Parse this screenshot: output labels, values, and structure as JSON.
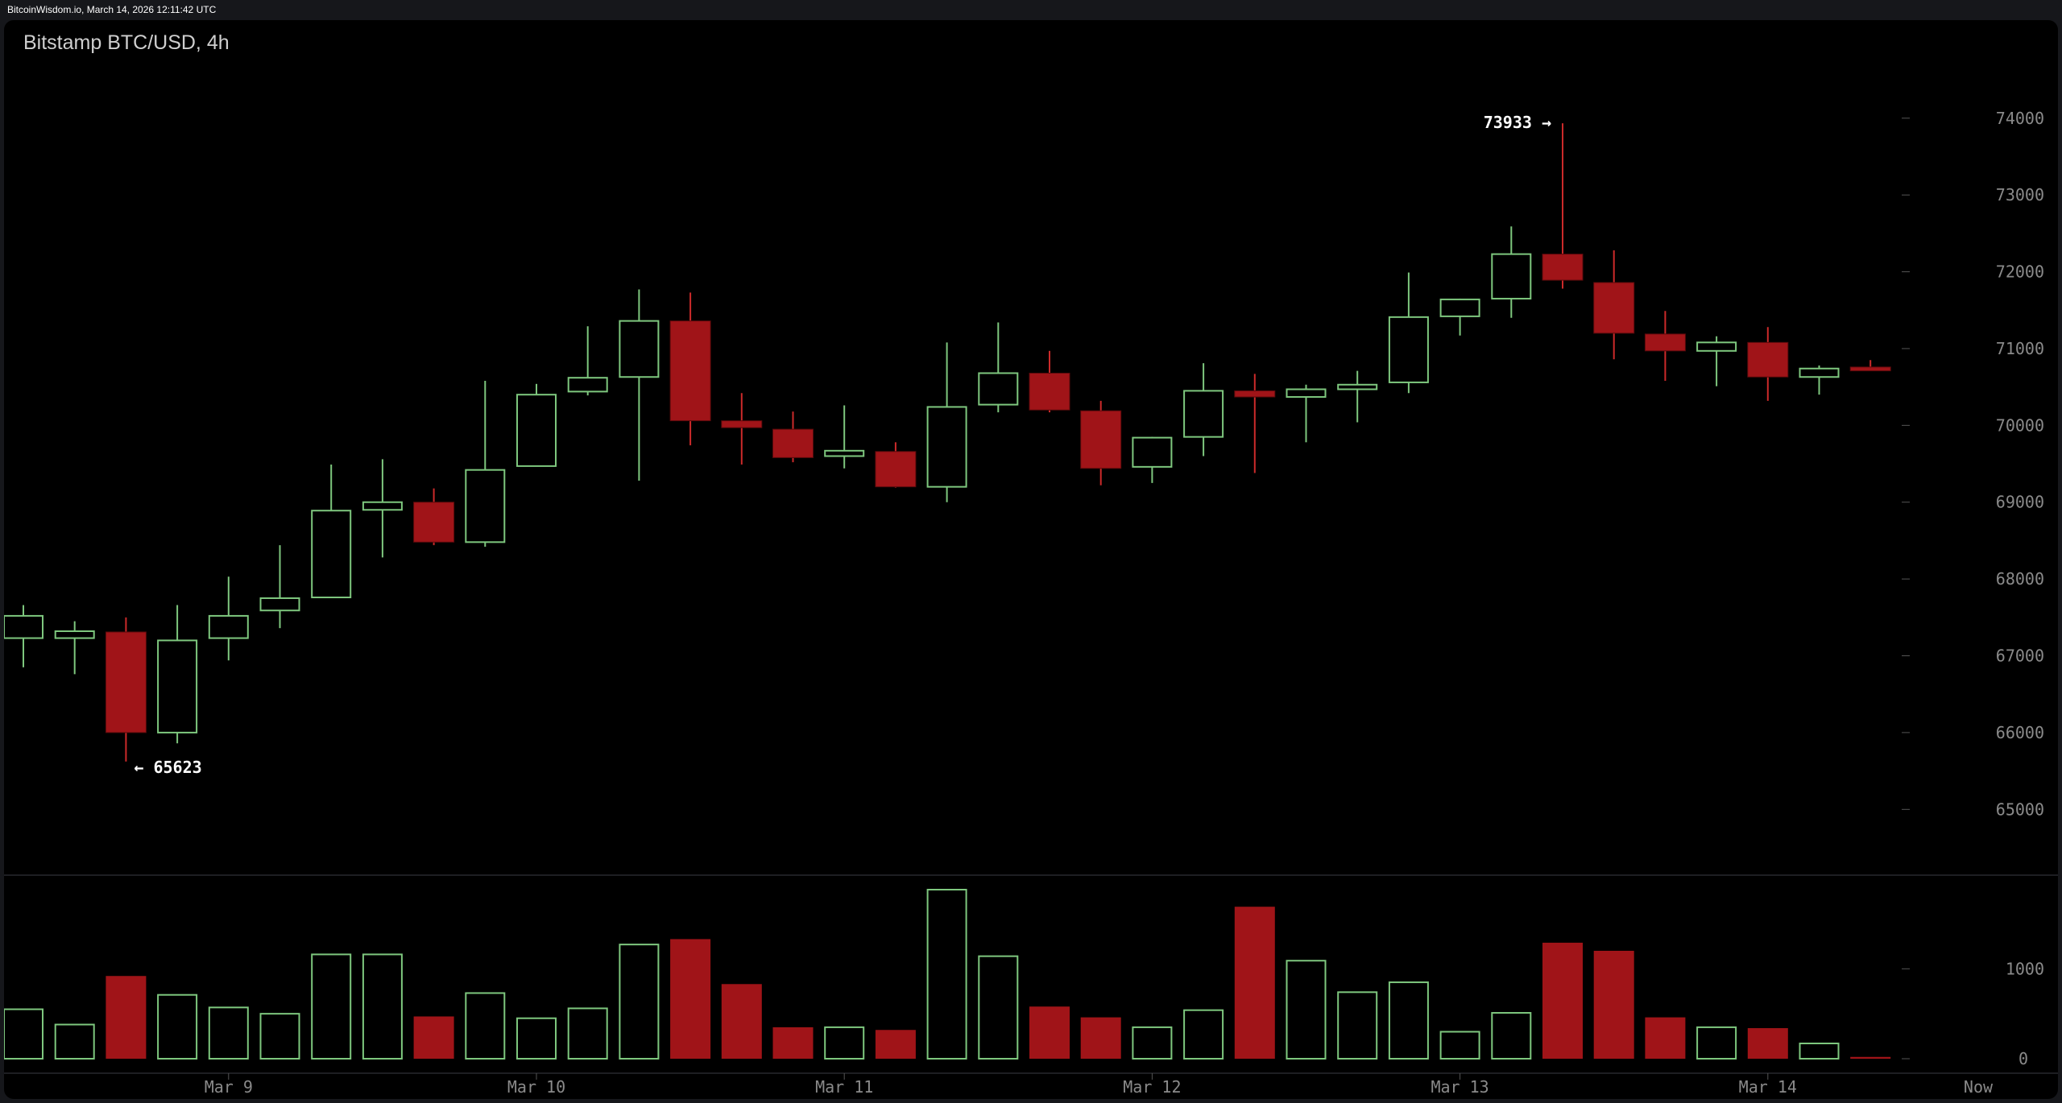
{
  "header": {
    "caption": "BitcoinWisdom.io, March 14, 2026 12:11:42 UTC"
  },
  "chart_title": "Bitstamp BTC/USD, 4h",
  "chart_data": {
    "type": "candlestick",
    "title": "Bitstamp BTC/USD, 4h",
    "interval": "4h",
    "price_ylim": [
      64500,
      74700
    ],
    "price_ticks": [
      65000,
      66000,
      67000,
      68000,
      69000,
      70000,
      71000,
      72000,
      73000,
      74000
    ],
    "volume_ylim": [
      0,
      1880
    ],
    "volume_ticks": [
      0,
      1000
    ],
    "x_labels": [
      {
        "label": "Mar 9",
        "index": 4
      },
      {
        "label": "Mar 10",
        "index": 10
      },
      {
        "label": "Mar 11",
        "index": 16
      },
      {
        "label": "Mar 12",
        "index": 22
      },
      {
        "label": "Mar 13",
        "index": 28
      },
      {
        "label": "Mar 14",
        "index": 34
      },
      {
        "label": "Now",
        "index": 38.1
      }
    ],
    "candles": [
      {
        "o": 67230,
        "h": 67660,
        "l": 66850,
        "c": 67520,
        "v": 550
      },
      {
        "o": 67230,
        "h": 67450,
        "l": 66760,
        "c": 67320,
        "v": 380
      },
      {
        "o": 67310,
        "h": 67500,
        "l": 65623,
        "c": 66000,
        "v": 920
      },
      {
        "o": 66000,
        "h": 67660,
        "l": 65860,
        "c": 67200,
        "v": 710
      },
      {
        "o": 67230,
        "h": 68030,
        "l": 66940,
        "c": 67520,
        "v": 570
      },
      {
        "o": 67590,
        "h": 68440,
        "l": 67360,
        "c": 67750,
        "v": 500
      },
      {
        "o": 67760,
        "h": 69490,
        "l": 67760,
        "c": 68890,
        "v": 1160
      },
      {
        "o": 68900,
        "h": 69560,
        "l": 68280,
        "c": 69000,
        "v": 1160
      },
      {
        "o": 69000,
        "h": 69180,
        "l": 68440,
        "c": 68480,
        "v": 470
      },
      {
        "o": 68480,
        "h": 70580,
        "l": 68420,
        "c": 69420,
        "v": 730
      },
      {
        "o": 69470,
        "h": 70540,
        "l": 69470,
        "c": 70400,
        "v": 450
      },
      {
        "o": 70440,
        "h": 71290,
        "l": 70390,
        "c": 70620,
        "v": 560
      },
      {
        "o": 70630,
        "h": 71770,
        "l": 69280,
        "c": 71360,
        "v": 1270
      },
      {
        "o": 71360,
        "h": 71730,
        "l": 69740,
        "c": 70060,
        "v": 1330
      },
      {
        "o": 70060,
        "h": 70420,
        "l": 69490,
        "c": 69970,
        "v": 830
      },
      {
        "o": 69950,
        "h": 70180,
        "l": 69520,
        "c": 69580,
        "v": 350
      },
      {
        "o": 69600,
        "h": 70260,
        "l": 69440,
        "c": 69670,
        "v": 350
      },
      {
        "o": 69660,
        "h": 69780,
        "l": 69190,
        "c": 69200,
        "v": 320
      },
      {
        "o": 69200,
        "h": 71080,
        "l": 69000,
        "c": 70240,
        "v": 1880
      },
      {
        "o": 70270,
        "h": 71340,
        "l": 70170,
        "c": 70680,
        "v": 1140
      },
      {
        "o": 70680,
        "h": 70970,
        "l": 70170,
        "c": 70200,
        "v": 580
      },
      {
        "o": 70190,
        "h": 70320,
        "l": 69220,
        "c": 69440,
        "v": 460
      },
      {
        "o": 69460,
        "h": 69850,
        "l": 69250,
        "c": 69840,
        "v": 350
      },
      {
        "o": 69850,
        "h": 70810,
        "l": 69600,
        "c": 70450,
        "v": 540
      },
      {
        "o": 70450,
        "h": 70670,
        "l": 69380,
        "c": 70370,
        "v": 1690
      },
      {
        "o": 70370,
        "h": 70530,
        "l": 69780,
        "c": 70470,
        "v": 1090
      },
      {
        "o": 70470,
        "h": 70710,
        "l": 70040,
        "c": 70530,
        "v": 740
      },
      {
        "o": 70560,
        "h": 71990,
        "l": 70420,
        "c": 71410,
        "v": 850
      },
      {
        "o": 71420,
        "h": 71650,
        "l": 71170,
        "c": 71640,
        "v": 300
      },
      {
        "o": 71650,
        "h": 72590,
        "l": 71400,
        "c": 72230,
        "v": 510
      },
      {
        "o": 72230,
        "h": 73933,
        "l": 71780,
        "c": 71890,
        "v": 1290
      },
      {
        "o": 71860,
        "h": 72280,
        "l": 70860,
        "c": 71200,
        "v": 1200
      },
      {
        "o": 71190,
        "h": 71490,
        "l": 70580,
        "c": 70970,
        "v": 460
      },
      {
        "o": 70970,
        "h": 71160,
        "l": 70510,
        "c": 71080,
        "v": 350
      },
      {
        "o": 71080,
        "h": 71280,
        "l": 70320,
        "c": 70630,
        "v": 340
      },
      {
        "o": 70630,
        "h": 70780,
        "l": 70400,
        "c": 70740,
        "v": 170
      },
      {
        "o": 70760,
        "h": 70850,
        "l": 70710,
        "c": 70710,
        "v": 20
      }
    ],
    "annotations": [
      {
        "text": "73933 →",
        "value": 73933,
        "index": 30,
        "side": "left"
      },
      {
        "text": "← 65623",
        "value": 65623,
        "index": 2,
        "side": "right"
      }
    ]
  }
}
